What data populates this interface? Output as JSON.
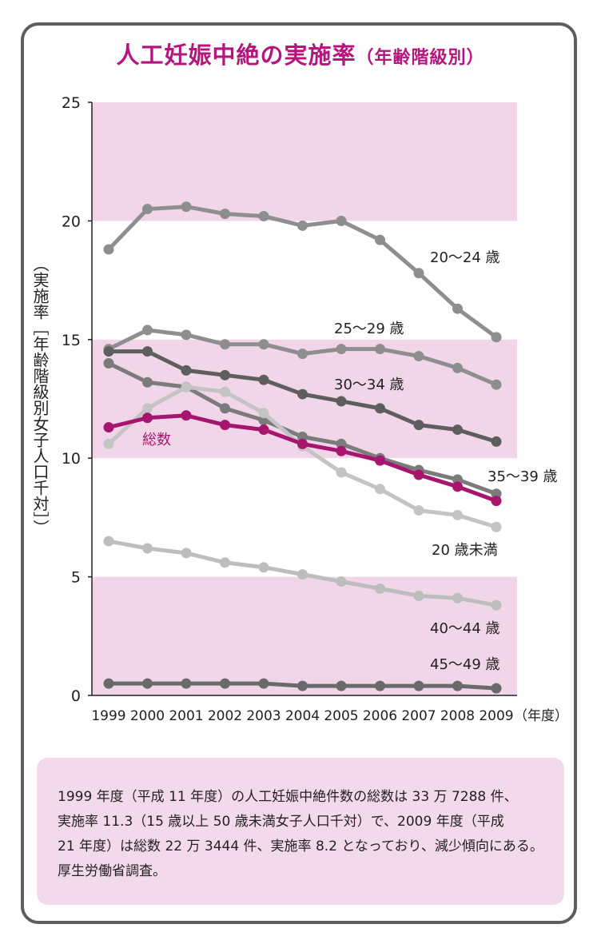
{
  "title": {
    "main": "人工妊娠中絶の実施率",
    "sub": "（年齢階級別）"
  },
  "chart_data": {
    "type": "line",
    "title": "人工妊娠中絶の実施率（年齢階級別）",
    "ylabel": "（実施率［年齢階級別女子人口千対］）",
    "xlabel": "（年度）",
    "x": [
      "1999",
      "2000",
      "2001",
      "2002",
      "2003",
      "2004",
      "2005",
      "2006",
      "2007",
      "2008",
      "2009"
    ],
    "ylim": [
      0,
      25
    ],
    "yticks": [
      "0",
      "5",
      "10",
      "15",
      "20",
      "25"
    ],
    "bands": [
      [
        0,
        5
      ],
      [
        10,
        15
      ],
      [
        20,
        25
      ]
    ],
    "series": [
      {
        "name": "20〜24 歳",
        "color": "#8e8e8e",
        "values": [
          18.8,
          20.5,
          20.6,
          20.3,
          20.2,
          19.8,
          20.0,
          19.2,
          17.8,
          16.3,
          15.1
        ]
      },
      {
        "name": "25〜29 歳",
        "color": "#8e8e8e",
        "values": [
          14.6,
          15.4,
          15.2,
          14.8,
          14.8,
          14.4,
          14.6,
          14.6,
          14.3,
          13.8,
          13.1
        ]
      },
      {
        "name": "30〜34 歳",
        "color": "#5e5e5e",
        "values": [
          14.5,
          14.5,
          13.7,
          13.5,
          13.3,
          12.7,
          12.4,
          12.1,
          11.4,
          11.2,
          10.7
        ]
      },
      {
        "name": "35〜39 歳",
        "color": "#7b7b7b",
        "values": [
          14.0,
          13.2,
          13.0,
          12.1,
          11.6,
          10.9,
          10.6,
          10.0,
          9.5,
          9.1,
          8.5
        ]
      },
      {
        "name": "20 歳未満",
        "color": "#c4c4c4",
        "values": [
          10.6,
          12.1,
          13.0,
          12.8,
          11.9,
          10.5,
          9.4,
          8.7,
          7.8,
          7.6,
          7.1
        ]
      },
      {
        "name": "40〜44 歳",
        "color": "#bdbdbd",
        "values": [
          6.5,
          6.2,
          6.0,
          5.6,
          5.4,
          5.1,
          4.8,
          4.5,
          4.2,
          4.1,
          3.8
        ]
      },
      {
        "name": "45〜49 歳",
        "color": "#6a6a6a",
        "values": [
          0.5,
          0.5,
          0.5,
          0.5,
          0.5,
          0.4,
          0.4,
          0.4,
          0.4,
          0.4,
          0.3
        ]
      },
      {
        "name": "総数",
        "color": "#a6166f",
        "values": [
          11.3,
          11.7,
          11.8,
          11.4,
          11.2,
          10.6,
          10.3,
          9.9,
          9.3,
          8.8,
          8.2
        ]
      }
    ]
  },
  "note": {
    "lines": [
      "1999 年度（平成 11 年度）の人工妊娠中絶件数の総数は 33 万 7288 件、",
      "実施率 11.3（15 歳以上 50 歳未満女子人口千対）で、2009 年度（平成",
      "21 年度）は総数 22 万 3444 件、実施率 8.2 となっており、減少傾向にある。",
      "厚生労働省調査。"
    ]
  }
}
